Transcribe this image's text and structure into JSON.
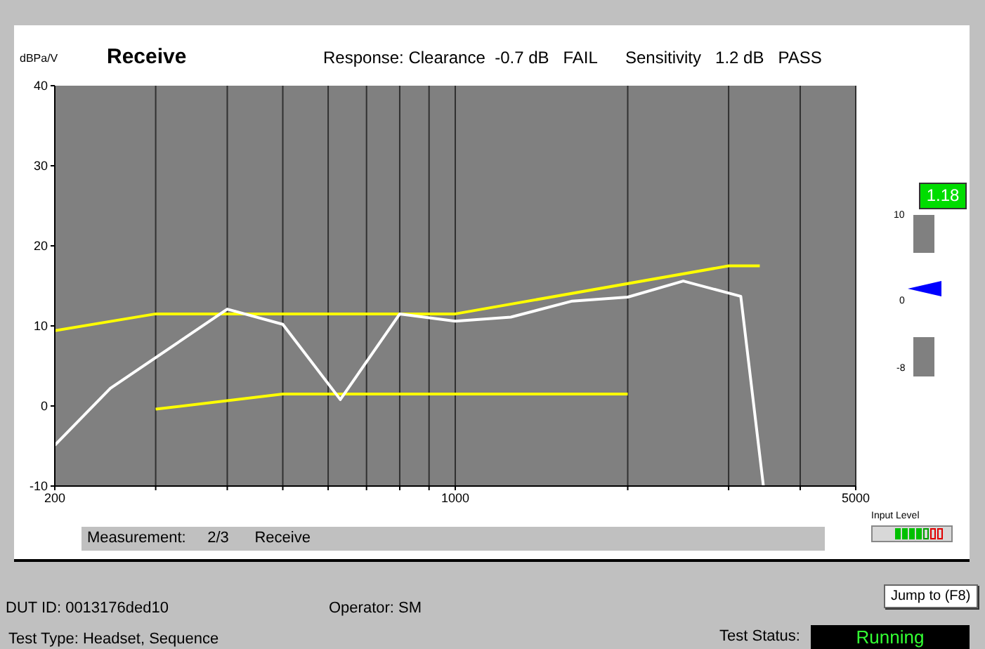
{
  "chart_data": {
    "type": "line",
    "title": "Receive",
    "subtitle": "Response: Clearance  -0.7 dB   FAIL      Sensitivity   1.2 dB   PASS",
    "ylabel": "dBPa/V",
    "annotations": [
      "Measurement:     2/3      Receive",
      "Input Level",
      "Jump to (F8)",
      "DUT ID: 0013176ded10",
      "Operator: SM",
      "Test Type: Headset, Sequence",
      "Test Status:",
      "Running",
      "1.18",
      "10",
      "0",
      "-8"
    ],
    "log": "x",
    "xlim": [
      200,
      5000
    ],
    "ylim": [
      -10,
      40
    ],
    "xticks": [
      200,
      {
        "value": 300,
        "label": null
      },
      {
        "value": 400,
        "label": null
      },
      {
        "value": 500,
        "label": null
      },
      {
        "value": 600,
        "label": null
      },
      {
        "value": 700,
        "label": null
      },
      {
        "value": 800,
        "label": null
      },
      {
        "value": 900,
        "label": null
      },
      1000,
      {
        "value": 2000,
        "label": null
      },
      {
        "value": 3000,
        "label": null
      },
      {
        "value": 4000,
        "label": null
      },
      5000
    ],
    "yticks": [
      -10,
      0,
      10,
      20,
      30,
      40
    ],
    "grid": "x",
    "marker": "none",
    "line_style": "solid",
    "series": [
      {
        "color": "#ffff00",
        "x": [
          200,
          300,
          1000,
          3000,
          3400
        ],
        "values": [
          9.4,
          11.5,
          11.5,
          17.5,
          17.5
        ]
      },
      {
        "color": "#ffff00",
        "x": [
          300,
          500,
          2000
        ],
        "values": [
          -0.4,
          1.5,
          1.5
        ]
      },
      {
        "color": "#ffffff",
        "x": [
          200,
          250,
          400,
          500,
          630,
          800,
          1000,
          1250,
          1600,
          2000,
          2500,
          3150,
          3450
        ],
        "values": [
          -4.9,
          2.2,
          12.1,
          10.2,
          0.8,
          11.5,
          10.6,
          11.1,
          13.1,
          13.6,
          15.6,
          13.7,
          -10
        ]
      }
    ]
  }
}
